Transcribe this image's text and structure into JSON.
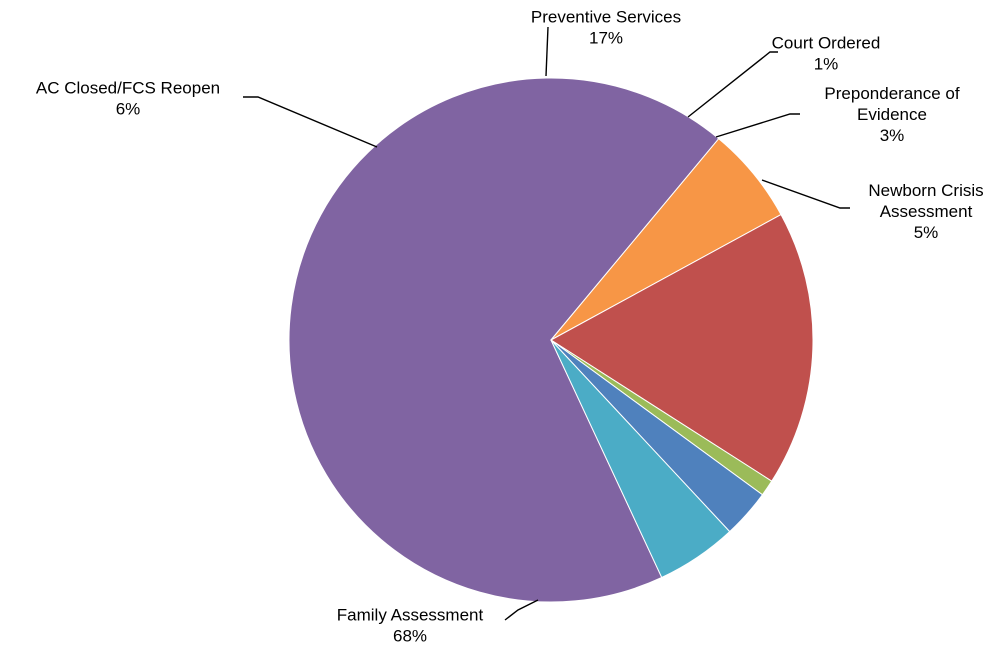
{
  "chart_data": {
    "type": "pie",
    "legend": "none",
    "slices": [
      {
        "name": "Family Assessment",
        "label_lines": [
          "Family Assessment"
        ],
        "value": 68,
        "pct_label": "68%",
        "color": "#8064A2"
      },
      {
        "name": "AC Closed/FCS Reopen",
        "label_lines": [
          "AC Closed/FCS Reopen"
        ],
        "value": 6,
        "pct_label": "6%",
        "color": "#F79646"
      },
      {
        "name": "Preventive Services",
        "label_lines": [
          "Preventive Services"
        ],
        "value": 17,
        "pct_label": "17%",
        "color": "#C0504D"
      },
      {
        "name": "Court Ordered",
        "label_lines": [
          "Court Ordered"
        ],
        "value": 1,
        "pct_label": "1%",
        "color": "#9BBB59"
      },
      {
        "name": "Preponderance of Evidence",
        "label_lines": [
          "Preponderance of",
          "Evidence"
        ],
        "value": 3,
        "pct_label": "3%",
        "color": "#4F81BD"
      },
      {
        "name": "Newborn Crisis Assessment",
        "label_lines": [
          "Newborn Crisis",
          "Assessment"
        ],
        "value": 5,
        "pct_label": "5%",
        "color": "#4BACC6"
      }
    ]
  }
}
